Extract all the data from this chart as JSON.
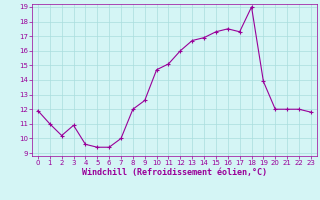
{
  "x": [
    0,
    1,
    2,
    3,
    4,
    5,
    6,
    7,
    8,
    9,
    10,
    11,
    12,
    13,
    14,
    15,
    16,
    17,
    18,
    19,
    20,
    21,
    22,
    23
  ],
  "y": [
    11.9,
    11.0,
    10.2,
    10.9,
    9.6,
    9.4,
    9.4,
    10.0,
    12.0,
    12.6,
    14.7,
    15.1,
    16.0,
    16.7,
    16.9,
    17.3,
    17.5,
    17.3,
    19.0,
    13.9,
    12.0,
    12.0,
    12.0,
    11.8
  ],
  "line_color": "#990099",
  "marker": "+",
  "marker_size": 3,
  "bg_color": "#d4f5f5",
  "grid_color": "#aadddd",
  "xlabel": "Windchill (Refroidissement éolien,°C)",
  "xlabel_color": "#990099",
  "tick_color": "#990099",
  "ylim": [
    9,
    19
  ],
  "xlim": [
    -0.5,
    23.5
  ],
  "yticks": [
    9,
    10,
    11,
    12,
    13,
    14,
    15,
    16,
    17,
    18,
    19
  ],
  "xticks": [
    0,
    1,
    2,
    3,
    4,
    5,
    6,
    7,
    8,
    9,
    10,
    11,
    12,
    13,
    14,
    15,
    16,
    17,
    18,
    19,
    20,
    21,
    22,
    23
  ],
  "tick_fontsize": 5.0,
  "xlabel_fontsize": 6.0,
  "ylabel_fontsize": 6.0
}
